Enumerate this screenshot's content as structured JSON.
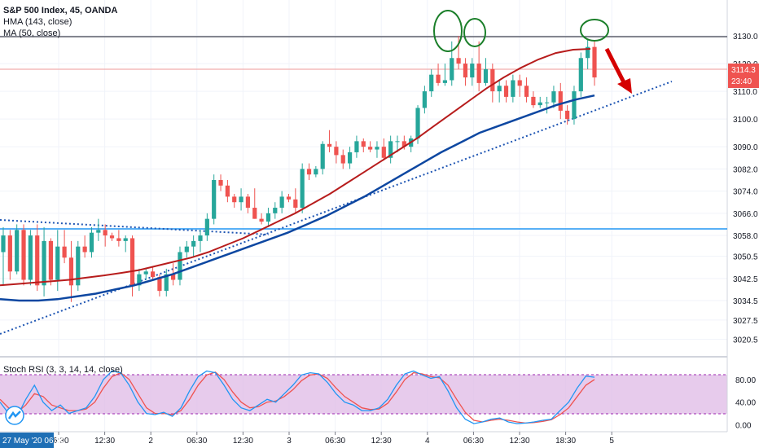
{
  "header": {
    "symbol_line": "S&P 500 Index, 45, OANDA",
    "indicator_1": "HMA (143, close)",
    "indicator_2": "MA (50, close)"
  },
  "oscillator": {
    "label": "Stoch RSI (3, 3, 14, 14, close)"
  },
  "price_badges": {
    "current_price": "3114.3",
    "countdown": "23:40"
  },
  "time_axis": {
    "highlighted_label": "27 May '20  06:30",
    "labels": [
      "06:30",
      "12:30",
      "2",
      "06:30",
      "12:30",
      "3",
      "06:30",
      "12:30",
      "4",
      "06:30",
      "12:30",
      "18:30",
      "5"
    ]
  },
  "colors": {
    "up": "#26a69a",
    "down": "#ef5350",
    "hma": "#b71c1c",
    "ma": "#0d47a1",
    "resistance": "#5d606b",
    "support": "#2196f3",
    "trend": "#1e55b3",
    "annotation_circle": "#1b7f2a",
    "arrow": "#d50000",
    "rsi_k": "#2196f3",
    "rsi_d": "#ef5350",
    "rsi_band": "#e1bee7"
  },
  "chart_data": [
    {
      "type": "candlestick",
      "title": "S&P 500 Index, 45, OANDA",
      "ylim": [
        3016,
        3140
      ],
      "y_ticks": [
        "3020.5",
        "3027.5",
        "3034.5",
        "3042.5",
        "3050.5",
        "3058.0",
        "3066.0",
        "3074.0",
        "3082.0",
        "3090.0",
        "3100.0",
        "3110.0",
        "3120.0",
        "3130.0"
      ],
      "x_labels": [
        "06:30",
        "12:30",
        "2",
        "06:30",
        "12:30",
        "3",
        "06:30",
        "12:30",
        "4",
        "06:30",
        "12:30",
        "18:30",
        "5"
      ],
      "ohlc": [
        [
          3052,
          3061,
          3040,
          3058
        ],
        [
          3058,
          3060,
          3042,
          3045
        ],
        [
          3045,
          3062,
          3044,
          3060
        ],
        [
          3060,
          3062,
          3040,
          3042
        ],
        [
          3042,
          3060,
          3040,
          3058
        ],
        [
          3058,
          3062,
          3038,
          3040
        ],
        [
          3040,
          3061,
          3036,
          3056
        ],
        [
          3056,
          3057,
          3040,
          3042
        ],
        [
          3042,
          3060,
          3038,
          3054
        ],
        [
          3054,
          3060,
          3048,
          3050
        ],
        [
          3050,
          3056,
          3034,
          3040
        ],
        [
          3040,
          3056,
          3038,
          3054
        ],
        [
          3054,
          3058,
          3050,
          3052
        ],
        [
          3052,
          3061,
          3050,
          3059
        ],
        [
          3059,
          3064,
          3056,
          3060
        ],
        [
          3060,
          3062,
          3054,
          3058
        ],
        [
          3058,
          3059,
          3056,
          3057
        ],
        [
          3057,
          3060,
          3054,
          3056
        ],
        [
          3056,
          3058,
          3052,
          3057
        ],
        [
          3057,
          3058,
          3036,
          3040
        ],
        [
          3040,
          3046,
          3038,
          3044
        ],
        [
          3044,
          3046,
          3042,
          3045
        ],
        [
          3045,
          3047,
          3042,
          3043
        ],
        [
          3043,
          3044,
          3036,
          3038
        ],
        [
          3038,
          3046,
          3036,
          3044
        ],
        [
          3044,
          3048,
          3040,
          3042
        ],
        [
          3042,
          3054,
          3040,
          3052
        ],
        [
          3052,
          3056,
          3050,
          3054
        ],
        [
          3054,
          3058,
          3050,
          3056
        ],
        [
          3056,
          3060,
          3052,
          3058
        ],
        [
          3058,
          3066,
          3056,
          3064
        ],
        [
          3064,
          3080,
          3062,
          3078
        ],
        [
          3078,
          3080,
          3074,
          3076
        ],
        [
          3076,
          3078,
          3070,
          3072
        ],
        [
          3072,
          3073,
          3068,
          3070
        ],
        [
          3070,
          3075,
          3067,
          3072
        ],
        [
          3072,
          3073,
          3066,
          3068
        ],
        [
          3068,
          3075,
          3064,
          3064
        ],
        [
          3064,
          3066,
          3062,
          3063
        ],
        [
          3063,
          3068,
          3061,
          3066
        ],
        [
          3066,
          3070,
          3064,
          3068
        ],
        [
          3068,
          3074,
          3066,
          3072
        ],
        [
          3072,
          3073,
          3070,
          3071
        ],
        [
          3071,
          3075,
          3066,
          3068
        ],
        [
          3068,
          3084,
          3066,
          3082
        ],
        [
          3082,
          3084,
          3078,
          3080
        ],
        [
          3080,
          3083,
          3079,
          3082
        ],
        [
          3082,
          3092,
          3080,
          3091
        ],
        [
          3091,
          3096,
          3088,
          3090
        ],
        [
          3090,
          3092,
          3084,
          3087
        ],
        [
          3087,
          3089,
          3082,
          3084
        ],
        [
          3084,
          3090,
          3082,
          3088
        ],
        [
          3088,
          3094,
          3086,
          3092
        ],
        [
          3092,
          3093,
          3088,
          3090
        ],
        [
          3090,
          3092,
          3088,
          3089
        ],
        [
          3089,
          3092,
          3086,
          3090
        ],
        [
          3090,
          3093,
          3085,
          3086
        ],
        [
          3086,
          3094,
          3084,
          3092
        ],
        [
          3092,
          3094,
          3088,
          3092
        ],
        [
          3092,
          3094,
          3089,
          3090
        ],
        [
          3090,
          3094,
          3088,
          3093
        ],
        [
          3093,
          3105,
          3091,
          3104
        ],
        [
          3104,
          3112,
          3102,
          3110
        ],
        [
          3110,
          3118,
          3108,
          3116
        ],
        [
          3116,
          3120,
          3112,
          3113
        ],
        [
          3113,
          3120,
          3112,
          3114
        ],
        [
          3114,
          3128,
          3112,
          3122
        ],
        [
          3122,
          3130,
          3118,
          3120
        ],
        [
          3120,
          3122,
          3112,
          3115
        ],
        [
          3115,
          3122,
          3112,
          3120
        ],
        [
          3120,
          3128,
          3110,
          3113
        ],
        [
          3113,
          3122,
          3112,
          3118
        ],
        [
          3118,
          3120,
          3106,
          3110
        ],
        [
          3110,
          3114,
          3106,
          3112
        ],
        [
          3112,
          3114,
          3106,
          3108
        ],
        [
          3108,
          3116,
          3106,
          3114
        ],
        [
          3114,
          3116,
          3108,
          3112
        ],
        [
          3112,
          3115,
          3106,
          3108
        ],
        [
          3108,
          3110,
          3104,
          3105
        ],
        [
          3105,
          3108,
          3104,
          3106
        ],
        [
          3106,
          3108,
          3102,
          3106
        ],
        [
          3106,
          3112,
          3104,
          3110
        ],
        [
          3110,
          3113,
          3100,
          3103
        ],
        [
          3103,
          3105,
          3098,
          3100
        ],
        [
          3100,
          3112,
          3098,
          3110
        ],
        [
          3110,
          3124,
          3108,
          3122
        ],
        [
          3122,
          3129,
          3118,
          3126
        ],
        [
          3126,
          3128,
          3112,
          3115
        ]
      ],
      "hma": [
        3040,
        3040.5,
        3041,
        3041.5,
        3042,
        3042.8,
        3043.6,
        3044.5,
        3045.5,
        3047,
        3048.5,
        3050,
        3052,
        3054.5,
        3057,
        3060,
        3063,
        3066,
        3069.5,
        3073,
        3077,
        3081,
        3085,
        3089,
        3093,
        3097.5,
        3102,
        3106.5,
        3111,
        3115,
        3118.5,
        3121.5,
        3123.8,
        3125,
        3125.3
      ],
      "ma50": [
        3035,
        3034.5,
        3034.5,
        3035,
        3036,
        3037,
        3038.5,
        3040,
        3042,
        3044,
        3046.5,
        3049,
        3051.5,
        3054,
        3056.5,
        3059,
        3062,
        3065,
        3068.5,
        3072,
        3076,
        3080,
        3084,
        3088,
        3091.5,
        3095,
        3097.5,
        3100,
        3102.5,
        3105,
        3107,
        3108.5
      ],
      "levels": {
        "resistance": 3125.3,
        "support": 3060.4
      }
    },
    {
      "type": "line",
      "title": "Stoch RSI (3, 3, 14, 14, close)",
      "ylim": [
        -5,
        100
      ],
      "y_ticks": [
        "80.00",
        "40.00",
        "0.00"
      ],
      "bands": [
        20,
        80
      ],
      "series": [
        {
          "values": [
            40,
            20,
            15,
            45,
            70,
            40,
            25,
            35,
            20,
            25,
            30,
            50,
            80,
            95,
            92,
            70,
            40,
            20,
            18,
            22,
            15,
            30,
            60,
            85,
            95,
            92,
            70,
            45,
            30,
            25,
            35,
            45,
            40,
            55,
            70,
            88,
            92,
            90,
            75,
            55,
            40,
            35,
            25,
            25,
            30,
            45,
            70,
            90,
            95,
            88,
            82,
            85,
            60,
            30,
            10,
            2,
            5,
            10,
            12,
            5,
            2,
            3,
            5,
            8,
            10,
            25,
            40,
            65,
            86,
            84
          ]
        },
        {
          "values": [
            45,
            30,
            22,
            35,
            55,
            50,
            35,
            30,
            25,
            25,
            28,
            40,
            65,
            85,
            92,
            80,
            55,
            30,
            20,
            20,
            18,
            25,
            45,
            70,
            88,
            93,
            80,
            58,
            40,
            30,
            32,
            40,
            42,
            50,
            62,
            78,
            88,
            90,
            82,
            65,
            50,
            40,
            30,
            27,
            28,
            38,
            58,
            80,
            92,
            90,
            85,
            83,
            70,
            45,
            22,
            8,
            5,
            8,
            10,
            8,
            5,
            3,
            4,
            6,
            9,
            18,
            30,
            50,
            70,
            80
          ]
        }
      ]
    }
  ]
}
